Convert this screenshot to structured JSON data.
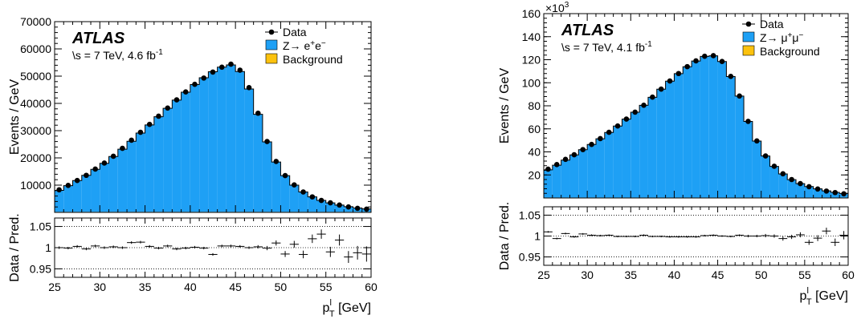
{
  "colors": {
    "signal": "#1ea0f5",
    "background": "#fcc20e",
    "data": "#000000"
  },
  "chart_data": [
    {
      "type": "bar",
      "experiment": "ATLAS",
      "energy_label": "\\s = 7 TeV, 4.6 fb",
      "energy_sup": "-1",
      "legend": {
        "placement": "top-right",
        "data": "Data",
        "signal_main": "Z→ e",
        "signal_sup1": "+",
        "signal_mid": "e",
        "signal_sup2": "−",
        "background": "Background"
      },
      "ylabel": "Events / GeV",
      "ratio_ylabel": "Data / Pred.",
      "xlabel_main": "p",
      "xlabel_sup": "l",
      "xlabel_sub": "T",
      "xlabel_unit": " [GeV]",
      "xlim": [
        25,
        60
      ],
      "ylim": [
        0,
        70000
      ],
      "ratio_ylim": [
        0.93,
        1.07
      ],
      "y_multiplier": "",
      "yticks": [
        10000,
        20000,
        30000,
        40000,
        50000,
        60000,
        70000
      ],
      "ytick_labels": [
        "10000",
        "20000",
        "30000",
        "40000",
        "50000",
        "60000",
        "70000"
      ],
      "xticks": [
        25,
        30,
        35,
        40,
        45,
        50,
        55,
        60
      ],
      "xtick_labels": [
        "25",
        "30",
        "35",
        "40",
        "45",
        "50",
        "55",
        "60"
      ],
      "ratio_yticks": [
        0.95,
        1,
        1.05
      ],
      "ratio_ytick_labels": [
        "0.95",
        "1",
        "1.05"
      ],
      "x": [
        25.5,
        26.5,
        27.5,
        28.5,
        29.5,
        30.5,
        31.5,
        32.5,
        33.5,
        34.5,
        35.5,
        36.5,
        37.5,
        38.5,
        39.5,
        40.5,
        41.5,
        42.5,
        43.5,
        44.5,
        45.5,
        46.5,
        47.5,
        48.5,
        49.5,
        50.5,
        51.5,
        52.5,
        53.5,
        54.5,
        55.5,
        56.5,
        57.5,
        58.5,
        59.5
      ],
      "series": [
        {
          "name": "Z→ e+e−",
          "values": [
            7900,
            9600,
            11500,
            13400,
            15600,
            17800,
            20300,
            23000,
            25900,
            28900,
            31900,
            34900,
            38000,
            41000,
            43900,
            46700,
            49200,
            51400,
            53100,
            53900,
            51500,
            45100,
            35800,
            25700,
            18300,
            13300,
            9800,
            7300,
            5500,
            4200,
            3300,
            2500,
            1900,
            1400,
            1100
          ]
        },
        {
          "name": "Background",
          "values": [
            200,
            200,
            200,
            200,
            200,
            200,
            200,
            200,
            200,
            200,
            200,
            200,
            200,
            200,
            200,
            200,
            200,
            200,
            200,
            200,
            200,
            200,
            200,
            200,
            200,
            200,
            200,
            200,
            200,
            200,
            200,
            200,
            200,
            200,
            200
          ]
        },
        {
          "name": "Data",
          "values": [
            8300,
            9900,
            11700,
            13600,
            15900,
            18100,
            20600,
            23500,
            26500,
            29400,
            32300,
            35300,
            38300,
            41300,
            44200,
            47000,
            49300,
            51500,
            53300,
            54400,
            52200,
            45800,
            36400,
            26000,
            18700,
            13500,
            10100,
            7500,
            5700,
            4400,
            3500,
            2700,
            2000,
            1500,
            1200
          ]
        }
      ],
      "ratio": [
        1.0,
        0.999,
        1.003,
        0.997,
        1.004,
        1.0,
        1.002,
        1.0,
        1.012,
        1.013,
        1.003,
        0.999,
        1.004,
        0.997,
        0.999,
        1.001,
        0.999,
        0.984,
        1.004,
        1.004,
        1.003,
        1.0,
        1.002,
        0.999,
        1.011,
        0.985,
        1.008,
        0.984,
        1.021,
        1.032,
        0.99,
        1.018,
        0.978,
        0.988,
        0.985
      ],
      "ratio_err": [
        0.003,
        0.003,
        0.003,
        0.003,
        0.003,
        0.003,
        0.003,
        0.003,
        0.003,
        0.003,
        0.003,
        0.003,
        0.003,
        0.003,
        0.003,
        0.003,
        0.003,
        0.003,
        0.003,
        0.003,
        0.003,
        0.003,
        0.004,
        0.005,
        0.006,
        0.007,
        0.008,
        0.009,
        0.01,
        0.011,
        0.012,
        0.013,
        0.014,
        0.016,
        0.018
      ]
    },
    {
      "type": "bar",
      "experiment": "ATLAS",
      "energy_label": "\\s = 7 TeV, 4.1 fb",
      "energy_sup": "-1",
      "legend": {
        "placement": "top-right",
        "data": "Data",
        "signal_main": "Z→ μ",
        "signal_sup1": "+",
        "signal_mid": "μ",
        "signal_sup2": "−",
        "background": "Background"
      },
      "ylabel": "Events / GeV",
      "ratio_ylabel": "Data / Pred.",
      "xlabel_main": "p",
      "xlabel_sup": "l",
      "xlabel_sub": "T",
      "xlabel_unit": " [GeV]",
      "xlim": [
        25,
        60
      ],
      "ylim": [
        0,
        160
      ],
      "ratio_ylim": [
        0.93,
        1.07
      ],
      "y_multiplier": "×10",
      "y_multiplier_sup": "3",
      "yticks": [
        20,
        40,
        60,
        80,
        100,
        120,
        140,
        160
      ],
      "ytick_labels": [
        "20",
        "40",
        "60",
        "80",
        "100",
        "120",
        "140",
        "160"
      ],
      "xticks": [
        25,
        30,
        35,
        40,
        45,
        50,
        55,
        60
      ],
      "xtick_labels": [
        "25",
        "30",
        "35",
        "40",
        "45",
        "50",
        "55",
        "60"
      ],
      "ratio_yticks": [
        0.95,
        1,
        1.05
      ],
      "ratio_ytick_labels": [
        "0.95",
        "1",
        "1.05"
      ],
      "x": [
        25.5,
        26.5,
        27.5,
        28.5,
        29.5,
        30.5,
        31.5,
        32.5,
        33.5,
        34.5,
        35.5,
        36.5,
        37.5,
        38.5,
        39.5,
        40.5,
        41.5,
        42.5,
        43.5,
        44.5,
        45.5,
        46.5,
        47.5,
        48.5,
        49.5,
        50.5,
        51.5,
        52.5,
        53.5,
        54.5,
        55.5,
        56.5,
        57.5,
        58.5,
        59.5
      ],
      "series": [
        {
          "name": "Z→ μ+μ−",
          "values": [
            24,
            28,
            32.5,
            37,
            41.5,
            46,
            51,
            56.5,
            62,
            68,
            74,
            80,
            87,
            94,
            101,
            107.5,
            113.5,
            118.5,
            122.5,
            123,
            118,
            105,
            88,
            66,
            49,
            36,
            27,
            20.5,
            15.5,
            12,
            9.5,
            7.5,
            5.8,
            4.5,
            3.5
          ]
        },
        {
          "name": "Background",
          "values": [
            0.4,
            0.4,
            0.4,
            0.4,
            0.4,
            0.4,
            0.4,
            0.4,
            0.4,
            0.4,
            0.4,
            0.4,
            0.4,
            0.4,
            0.4,
            0.4,
            0.4,
            0.4,
            0.4,
            0.4,
            0.4,
            0.4,
            0.4,
            0.4,
            0.4,
            0.4,
            0.4,
            0.4,
            0.4,
            0.4,
            0.4,
            0.4,
            0.4,
            0.4,
            0.4
          ]
        },
        {
          "name": "Data",
          "values": [
            25,
            29,
            33.5,
            37.5,
            42,
            46.5,
            51.5,
            57,
            62.5,
            68.5,
            74.5,
            80.5,
            87.5,
            94.5,
            101.5,
            108,
            114,
            119,
            123,
            123.5,
            118.5,
            105.5,
            88.5,
            66.5,
            49.5,
            36.5,
            27.5,
            21,
            16,
            12.5,
            9.8,
            7.8,
            6,
            4.7,
            3.6
          ]
        }
      ],
      "ratio": [
        1.01,
        0.994,
        1.006,
        0.998,
        1.005,
        1.002,
        1.001,
        1.002,
        0.999,
        0.999,
        0.999,
        1.002,
        0.999,
        0.999,
        0.998,
        0.998,
        0.998,
        0.998,
        1.001,
        1.002,
        1.0,
        0.999,
        1.002,
        1.0,
        1.0,
        1.001,
        1.0,
        0.994,
        0.998,
        1.003,
        0.985,
        0.995,
        1.012,
        0.985,
        1.002
      ],
      "ratio_err": [
        0.002,
        0.002,
        0.002,
        0.002,
        0.002,
        0.002,
        0.002,
        0.002,
        0.002,
        0.002,
        0.002,
        0.002,
        0.002,
        0.002,
        0.002,
        0.002,
        0.002,
        0.002,
        0.002,
        0.002,
        0.002,
        0.002,
        0.002,
        0.003,
        0.003,
        0.004,
        0.004,
        0.005,
        0.005,
        0.006,
        0.006,
        0.007,
        0.008,
        0.009,
        0.01
      ]
    }
  ]
}
